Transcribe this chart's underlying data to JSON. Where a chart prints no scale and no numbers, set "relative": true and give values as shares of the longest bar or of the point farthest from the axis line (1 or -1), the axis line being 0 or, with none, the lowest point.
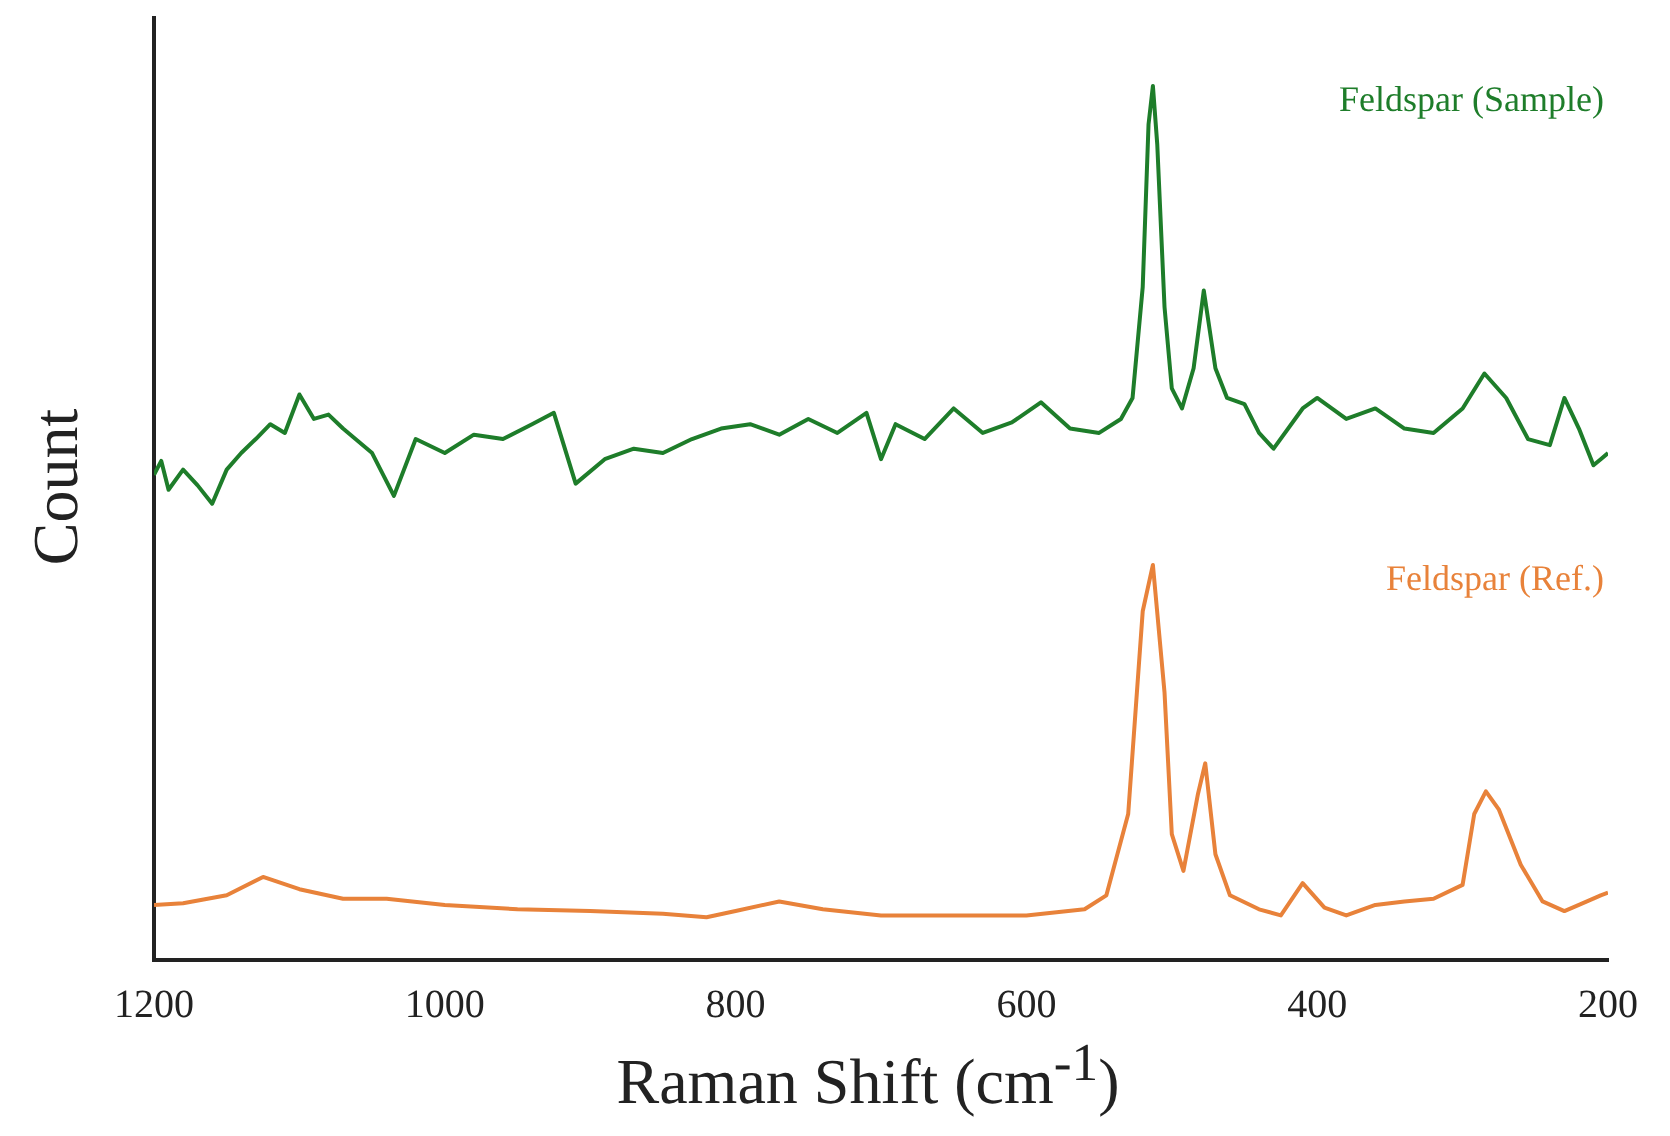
{
  "chart_data": {
    "type": "line",
    "relative": true,
    "xlabel": "Raman Shift (cm$^{-1}$)",
    "ylabel": "Count",
    "xlim": [
      1200,
      200
    ],
    "xticks": [
      1200,
      1000,
      800,
      600,
      400,
      200
    ],
    "grid": false,
    "legend": false,
    "marker": "none",
    "line_style": "solid",
    "series": [
      {
        "name": "Feldspar (Sample)",
        "color": "#1e7d2a",
        "x": [
          1200,
          1195,
          1190,
          1180,
          1170,
          1160,
          1150,
          1140,
          1130,
          1120,
          1110,
          1100,
          1090,
          1080,
          1070,
          1060,
          1050,
          1035,
          1020,
          1000,
          980,
          960,
          940,
          925,
          910,
          890,
          870,
          850,
          830,
          810,
          790,
          770,
          750,
          730,
          710,
          700,
          690,
          670,
          650,
          630,
          610,
          590,
          570,
          550,
          535,
          527,
          520,
          516,
          513,
          510,
          505,
          500,
          493,
          485,
          478,
          470,
          462,
          450,
          440,
          430,
          410,
          400,
          380,
          360,
          340,
          320,
          300,
          285,
          270,
          255,
          240,
          230,
          220,
          210,
          205,
          200
        ],
        "values": [
          0.555,
          0.571,
          0.538,
          0.561,
          0.543,
          0.522,
          0.561,
          0.58,
          0.596,
          0.613,
          0.603,
          0.647,
          0.619,
          0.624,
          0.608,
          0.594,
          0.58,
          0.531,
          0.596,
          0.58,
          0.601,
          0.596,
          0.613,
          0.626,
          0.545,
          0.573,
          0.585,
          0.58,
          0.596,
          0.608,
          0.613,
          0.601,
          0.619,
          0.603,
          0.626,
          0.573,
          0.613,
          0.596,
          0.631,
          0.603,
          0.615,
          0.638,
          0.608,
          0.603,
          0.619,
          0.643,
          0.77,
          0.956,
          1,
          0.933,
          0.747,
          0.654,
          0.631,
          0.677,
          0.766,
          0.677,
          0.643,
          0.636,
          0.603,
          0.585,
          0.631,
          0.643,
          0.619,
          0.631,
          0.608,
          0.603,
          0.631,
          0.671,
          0.643,
          0.596,
          0.589,
          0.643,
          0.608,
          0.566,
          0.573,
          0.58
        ]
      },
      {
        "name": "Feldspar (Ref.)",
        "color": "#e8823a",
        "x": [
          1200,
          1180,
          1150,
          1125,
          1100,
          1070,
          1040,
          1000,
          950,
          900,
          850,
          820,
          800,
          770,
          740,
          700,
          650,
          600,
          560,
          545,
          530,
          520,
          513,
          505,
          500,
          492,
          482,
          477,
          470,
          460,
          440,
          425,
          410,
          395,
          380,
          360,
          340,
          320,
          300,
          292,
          284,
          275,
          260,
          245,
          230,
          220,
          205,
          200
        ],
        "values": [
          0.063,
          0.065,
          0.074,
          0.095,
          0.081,
          0.07,
          0.07,
          0.063,
          0.058,
          0.056,
          0.053,
          0.049,
          0.056,
          0.067,
          0.058,
          0.051,
          0.051,
          0.051,
          0.058,
          0.074,
          0.167,
          0.399,
          0.452,
          0.306,
          0.144,
          0.102,
          0.19,
          0.225,
          0.121,
          0.074,
          0.058,
          0.051,
          0.088,
          0.06,
          0.051,
          0.063,
          0.067,
          0.07,
          0.086,
          0.167,
          0.193,
          0.172,
          0.109,
          0.067,
          0.056,
          0.063,
          0.074,
          0.077
        ]
      }
    ]
  }
}
